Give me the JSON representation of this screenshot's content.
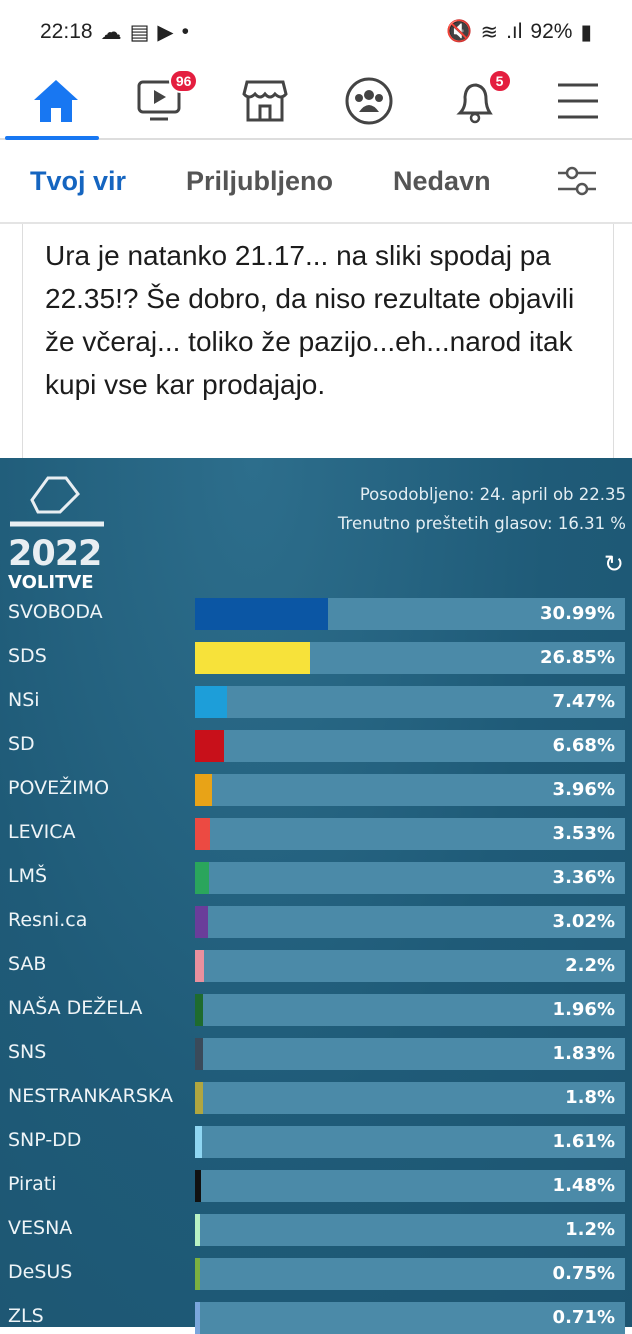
{
  "status": {
    "time": "22:18",
    "battery": "92%"
  },
  "nav": {
    "video_badge": "96",
    "notif_badge": "5"
  },
  "tabs": [
    "Tvoj vir",
    "Priljubljeno",
    "Nedavn"
  ],
  "post": {
    "text": "Ura je natanko 21.17... na sliki spodaj pa 22.35!? Še dobro, da niso rezultate objavili že včeraj... toliko že pazijo...eh...narod itak kupi vse kar prodajajo."
  },
  "results": {
    "logo_year": "2022",
    "logo_word": "VOLITVE",
    "updated": "Posodobljeno: 24. april ob 22.35",
    "counted": "Trenutno preštetih glasov: 16.31 %"
  },
  "chart_data": {
    "type": "bar",
    "orientation": "horizontal",
    "xlim": [
      0,
      100
    ],
    "categories": [
      "SVOBODA",
      "SDS",
      "NSi",
      "SD",
      "POVEŽIMO",
      "LEVICA",
      "LMŠ",
      "Resni.ca",
      "SAB",
      "NAŠA DEŽELA",
      "SNS",
      "NESTRANKARSKA",
      "SNP-DD",
      "Pirati",
      "VESNA",
      "DeSUS",
      "ZLS"
    ],
    "values": [
      30.99,
      26.85,
      7.47,
      6.68,
      3.96,
      3.53,
      3.36,
      3.02,
      2.2,
      1.96,
      1.83,
      1.8,
      1.61,
      1.48,
      1.2,
      0.75,
      0.71
    ],
    "labels": [
      "30.99%",
      "26.85%",
      "7.47%",
      "6.68%",
      "3.96%",
      "3.53%",
      "3.36%",
      "3.02%",
      "2.2%",
      "1.96%",
      "1.83%",
      "1.8%",
      "1.61%",
      "1.48%",
      "1.2%",
      "0.75%",
      "0.71%"
    ],
    "colors": [
      "#0b56a4",
      "#f7e23a",
      "#1d9ed9",
      "#c8101a",
      "#e8a317",
      "#ec4a42",
      "#2aa55c",
      "#6a3d9a",
      "#e8909e",
      "#1e6b2e",
      "#3a4a5a",
      "#b0a640",
      "#8fd6f2",
      "#111111",
      "#b9f2c4",
      "#7bb040",
      "#7aa6dc"
    ]
  }
}
